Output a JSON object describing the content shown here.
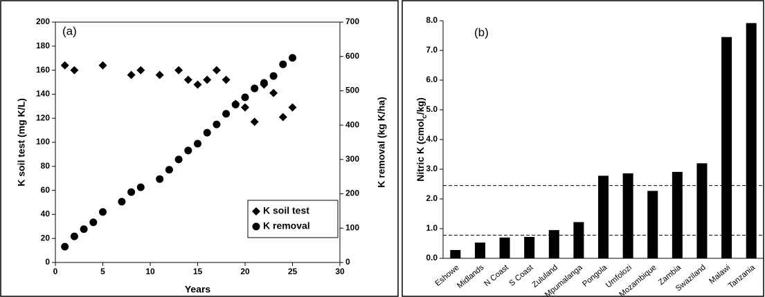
{
  "chart_data": [
    {
      "type": "scatter",
      "panel_label": "(a)",
      "xlabel": "Years",
      "ylabel": "K soil test (mg K/L)",
      "y2label": "K removal (kg K/ha)",
      "xlim": [
        0,
        30
      ],
      "xticks": [
        0,
        5,
        10,
        15,
        20,
        25,
        30
      ],
      "ylim": [
        0,
        200
      ],
      "yticks": [
        0,
        20,
        40,
        60,
        80,
        100,
        120,
        140,
        160,
        180,
        200
      ],
      "y2lim": [
        0,
        700
      ],
      "y2ticks": [
        0,
        100,
        200,
        300,
        400,
        500,
        600,
        700
      ],
      "legend": "lower right",
      "series": [
        {
          "name": "K soil test",
          "marker": "diamond",
          "color": "#000000",
          "x": [
            1,
            2,
            5,
            8,
            9,
            11,
            13,
            14,
            15,
            16,
            17,
            18,
            19,
            20,
            21,
            22,
            23,
            24,
            25
          ],
          "values": [
            164,
            160,
            164,
            156,
            160,
            156,
            160,
            152,
            148,
            152,
            160,
            152,
            132,
            129,
            117,
            148,
            141,
            121,
            129
          ]
        },
        {
          "name": "K removal",
          "marker": "circle",
          "color": "#000000",
          "axis": "y2",
          "x": [
            1,
            2,
            3,
            4,
            5,
            7,
            8,
            9,
            11,
            12,
            13,
            14,
            15,
            16,
            17,
            18,
            19,
            20,
            21,
            22,
            23,
            24,
            25
          ],
          "values": [
            46,
            76,
            97,
            117,
            147,
            177,
            205,
            219,
            243,
            270,
            300,
            326,
            346,
            378,
            402,
            433,
            460,
            481,
            507,
            523,
            543,
            577,
            596
          ]
        }
      ]
    },
    {
      "type": "bar",
      "panel_label": "(b)",
      "ylabel_parts": [
        "Nitric K (cmol",
        "c",
        "/kg)"
      ],
      "categories": [
        "Eshowe",
        "Midlands",
        "N Coast",
        "S Coast",
        "Zululand",
        "Mpumalanga",
        "Pongola",
        "Umfolozi",
        "Mozambique",
        "Zambia",
        "Swaziland",
        "Malawi",
        "Tanzania"
      ],
      "values": [
        0.28,
        0.53,
        0.7,
        0.72,
        0.95,
        1.22,
        2.78,
        2.86,
        2.27,
        2.91,
        3.2,
        7.45,
        7.92
      ],
      "color": "#000000",
      "ylim": [
        0,
        8
      ],
      "yticks": [
        {
          "value": 0,
          "label": "0.0"
        },
        {
          "value": 1,
          "label": "1.0"
        },
        {
          "value": 2,
          "label": "2.0"
        },
        {
          "value": 3,
          "label": "3.0"
        },
        {
          "value": 4,
          "label": "4.0"
        },
        {
          "value": 5,
          "label": "5.0"
        },
        {
          "value": 6,
          "label": "6.0"
        },
        {
          "value": 7,
          "label": "7.0"
        },
        {
          "value": 8,
          "label": "8.0"
        }
      ],
      "hlines": [
        2.45,
        0.78
      ]
    }
  ]
}
